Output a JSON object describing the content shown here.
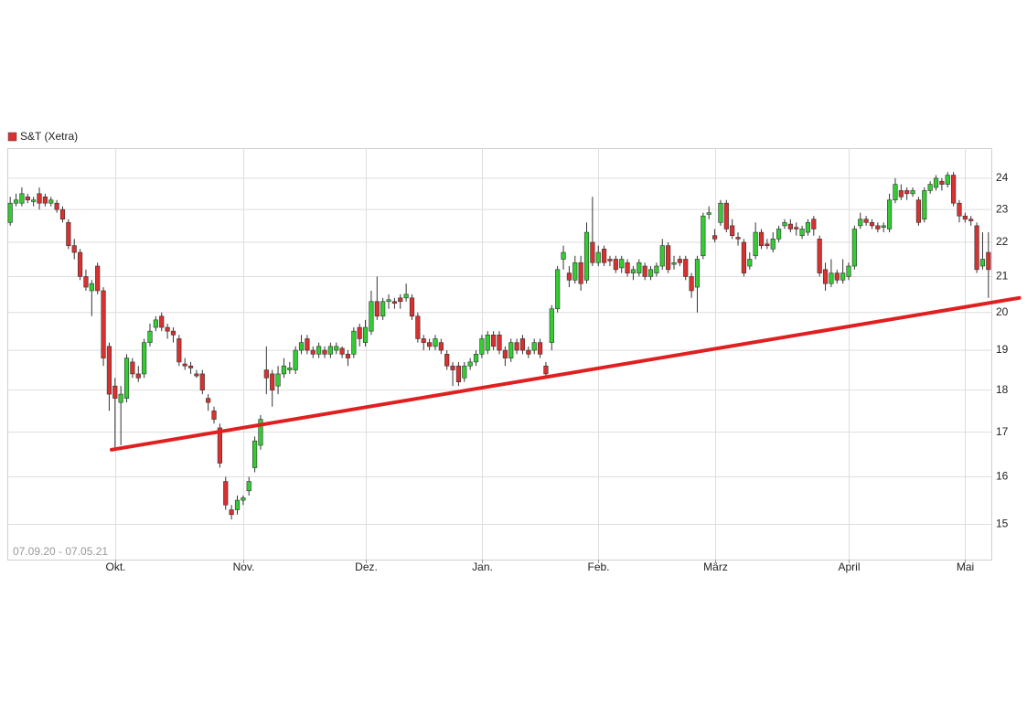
{
  "chart_data": {
    "type": "candlestick",
    "range_label": "07.09.20 - 07.05.21",
    "log_scale": true,
    "grid": true,
    "xlim": [
      -0.5,
      168.5
    ],
    "ylim": [
      14.3,
      25
    ],
    "yticks": [
      15,
      16,
      17,
      18,
      19,
      20,
      21,
      22,
      23,
      24
    ],
    "xticks": [
      {
        "value": 18,
        "label": "Okt."
      },
      {
        "value": 40,
        "label": "Nov."
      },
      {
        "value": 61,
        "label": "Dez."
      },
      {
        "value": 81,
        "label": "Jan."
      },
      {
        "value": 101,
        "label": "Feb."
      },
      {
        "value": 121,
        "label": "März"
      },
      {
        "value": 144,
        "label": "April"
      },
      {
        "value": 164,
        "label": "Mai"
      }
    ],
    "series": [
      {
        "name": "S&T (Xetra)",
        "color": "#d93030",
        "up_color": "#33cc33",
        "down_color": "#d93030",
        "open": [
          22.6,
          23.2,
          23.2,
          23.4,
          23.25,
          23.5,
          23.4,
          23.2,
          23.2,
          23.0,
          22.6,
          21.9,
          21.7,
          21.0,
          20.6,
          21.3,
          20.6,
          19.1,
          18.1,
          17.7,
          17.8,
          18.7,
          18.4,
          18.4,
          19.2,
          19.6,
          19.9,
          19.6,
          19.5,
          19.3,
          18.65,
          18.6,
          18.4,
          18.4,
          17.8,
          17.5,
          17.1,
          15.9,
          15.3,
          15.3,
          15.5,
          15.7,
          16.2,
          16.7,
          18.5,
          18.4,
          18.1,
          18.4,
          18.5,
          18.5,
          19.0,
          19.3,
          19.0,
          18.9,
          19.0,
          18.9,
          19.0,
          19.05,
          18.9,
          18.9,
          19.6,
          19.2,
          19.5,
          20.3,
          19.9,
          20.3,
          20.3,
          20.4,
          20.4,
          20.4,
          19.9,
          19.3,
          19.2,
          19.1,
          19.2,
          18.9,
          18.6,
          18.6,
          18.3,
          18.6,
          18.7,
          18.9,
          19.0,
          19.4,
          19.4,
          19.0,
          18.8,
          19.2,
          19.3,
          19.0,
          19.0,
          19.2,
          18.6,
          19.2,
          20.1,
          21.5,
          21.1,
          20.9,
          21.4,
          20.9,
          22.0,
          21.4,
          21.8,
          21.5,
          21.5,
          21.25,
          21.4,
          21.1,
          21.1,
          21.3,
          21.0,
          21.1,
          21.3,
          21.9,
          21.35,
          21.5,
          21.5,
          21.0,
          20.7,
          21.6,
          22.85,
          22.2,
          22.6,
          23.2,
          22.5,
          22.15,
          22.0,
          21.3,
          21.6,
          22.3,
          21.95,
          21.8,
          22.1,
          22.5,
          22.55,
          22.45,
          22.2,
          22.3,
          22.7,
          22.1,
          21.2,
          20.8,
          21.1,
          20.9,
          21.0,
          21.3,
          22.5,
          22.7,
          22.6,
          22.5,
          22.45,
          22.4,
          23.3,
          23.6,
          23.6,
          23.5,
          23.3,
          22.7,
          23.6,
          23.7,
          23.9,
          23.8,
          24.1,
          23.2,
          22.8,
          22.7,
          22.5,
          21.3,
          21.7
        ],
        "high": [
          23.4,
          23.5,
          23.7,
          23.5,
          23.4,
          23.7,
          23.5,
          23.4,
          23.3,
          23.1,
          22.7,
          22.1,
          21.8,
          21.2,
          20.9,
          21.4,
          20.7,
          19.2,
          18.3,
          18.1,
          18.9,
          18.8,
          18.6,
          19.3,
          19.7,
          19.9,
          20.0,
          19.7,
          19.6,
          19.4,
          18.8,
          18.7,
          18.5,
          18.5,
          17.9,
          17.6,
          17.2,
          16.0,
          15.4,
          15.6,
          15.6,
          16.0,
          16.9,
          17.4,
          19.1,
          18.5,
          18.6,
          18.8,
          18.7,
          19.1,
          19.4,
          19.4,
          19.1,
          19.2,
          19.1,
          19.2,
          19.2,
          19.1,
          19.0,
          19.6,
          19.7,
          19.8,
          20.6,
          21.0,
          20.4,
          20.5,
          20.4,
          20.5,
          20.8,
          20.5,
          20.0,
          19.4,
          19.3,
          19.4,
          19.3,
          19.0,
          18.7,
          18.7,
          18.7,
          18.8,
          19.0,
          19.4,
          19.5,
          19.5,
          19.5,
          19.1,
          19.3,
          19.3,
          19.4,
          19.1,
          19.3,
          19.3,
          18.7,
          20.2,
          21.3,
          21.9,
          21.3,
          21.6,
          21.6,
          22.6,
          23.4,
          21.9,
          21.9,
          21.6,
          21.6,
          21.6,
          21.5,
          21.3,
          21.5,
          21.4,
          21.3,
          21.4,
          22.1,
          22.0,
          21.6,
          21.6,
          21.6,
          21.1,
          21.6,
          22.9,
          23.1,
          22.4,
          23.3,
          23.3,
          22.7,
          22.3,
          22.1,
          21.7,
          22.6,
          22.4,
          22.1,
          22.3,
          22.5,
          22.7,
          22.7,
          22.6,
          22.5,
          22.7,
          22.8,
          22.2,
          21.4,
          21.5,
          21.2,
          21.5,
          21.4,
          22.5,
          22.9,
          22.8,
          22.7,
          22.6,
          22.6,
          23.5,
          24.0,
          23.8,
          23.7,
          23.7,
          23.4,
          23.7,
          23.9,
          24.1,
          24.0,
          24.2,
          24.2,
          23.3,
          22.9,
          22.8,
          22.6,
          22.3,
          22.3
        ],
        "low": [
          22.5,
          23.1,
          23.1,
          23.2,
          23.1,
          23.0,
          23.1,
          23.1,
          22.9,
          22.6,
          21.8,
          21.5,
          20.9,
          20.6,
          19.9,
          20.5,
          18.6,
          17.5,
          16.6,
          16.7,
          17.7,
          18.3,
          18.2,
          18.3,
          19.1,
          19.5,
          19.5,
          19.3,
          19.2,
          18.6,
          18.5,
          18.4,
          18.3,
          17.9,
          17.5,
          17.2,
          16.2,
          15.3,
          15.1,
          15.2,
          15.4,
          15.6,
          16.1,
          16.6,
          17.9,
          17.6,
          17.9,
          18.3,
          18.4,
          18.4,
          18.9,
          18.9,
          18.8,
          18.8,
          18.8,
          18.8,
          18.9,
          18.8,
          18.6,
          18.8,
          19.1,
          19.1,
          19.4,
          19.8,
          19.8,
          20.1,
          20.1,
          20.1,
          20.3,
          19.8,
          19.2,
          19.0,
          19.0,
          19.0,
          18.9,
          18.5,
          18.1,
          18.1,
          18.2,
          18.5,
          18.6,
          18.8,
          18.9,
          19.0,
          18.9,
          18.6,
          18.7,
          18.9,
          18.9,
          18.8,
          18.9,
          18.8,
          18.3,
          19.0,
          20.0,
          21.2,
          20.7,
          20.8,
          20.6,
          20.8,
          21.3,
          21.3,
          21.3,
          21.3,
          21.1,
          21.1,
          21.0,
          20.9,
          21.0,
          20.9,
          20.9,
          21.0,
          21.2,
          21.1,
          21.2,
          21.3,
          20.9,
          20.4,
          20.0,
          21.5,
          22.7,
          22.0,
          22.5,
          22.3,
          22.1,
          21.9,
          21.0,
          21.2,
          21.5,
          21.8,
          21.8,
          21.7,
          22.0,
          22.4,
          22.3,
          22.2,
          22.1,
          22.2,
          22.2,
          21.0,
          20.6,
          20.7,
          20.8,
          20.8,
          20.9,
          21.2,
          22.4,
          22.5,
          22.4,
          22.3,
          22.3,
          22.3,
          23.2,
          23.3,
          23.3,
          23.4,
          22.5,
          22.6,
          23.5,
          23.6,
          23.6,
          23.7,
          23.1,
          22.6,
          22.6,
          22.5,
          21.1,
          21.2,
          20.4
        ],
        "close": [
          23.2,
          23.3,
          23.5,
          23.3,
          23.3,
          23.2,
          23.2,
          23.3,
          23.0,
          22.7,
          21.9,
          21.7,
          21.0,
          20.7,
          20.8,
          20.6,
          18.8,
          17.9,
          17.8,
          17.9,
          18.8,
          18.4,
          18.3,
          19.2,
          19.5,
          19.8,
          19.6,
          19.5,
          19.4,
          18.7,
          18.6,
          18.55,
          18.35,
          18.0,
          17.7,
          17.3,
          16.3,
          15.4,
          15.2,
          15.5,
          15.55,
          15.9,
          16.8,
          17.3,
          18.3,
          18.0,
          18.4,
          18.6,
          18.55,
          19.0,
          19.2,
          19.0,
          18.9,
          19.1,
          18.9,
          19.1,
          19.1,
          18.9,
          18.8,
          19.5,
          19.3,
          19.6,
          20.3,
          19.9,
          20.3,
          20.35,
          20.25,
          20.3,
          20.5,
          19.9,
          19.3,
          19.2,
          19.1,
          19.3,
          19.0,
          18.6,
          18.5,
          18.2,
          18.6,
          18.7,
          18.9,
          19.3,
          19.4,
          19.1,
          19.0,
          18.8,
          19.2,
          19.0,
          19.0,
          18.9,
          19.2,
          18.9,
          18.4,
          20.1,
          21.2,
          21.7,
          20.9,
          21.4,
          20.8,
          22.3,
          21.4,
          21.7,
          21.4,
          21.45,
          21.2,
          21.5,
          21.1,
          21.2,
          21.4,
          21.0,
          21.2,
          21.3,
          21.9,
          21.2,
          21.4,
          21.4,
          21.0,
          20.6,
          21.5,
          22.8,
          22.9,
          22.1,
          23.2,
          22.4,
          22.2,
          22.1,
          21.1,
          21.5,
          22.3,
          21.9,
          21.9,
          22.1,
          22.4,
          22.6,
          22.4,
          22.4,
          22.4,
          22.6,
          22.4,
          21.1,
          20.8,
          21.1,
          20.9,
          21.1,
          21.3,
          22.4,
          22.7,
          22.6,
          22.5,
          22.4,
          22.5,
          23.3,
          23.8,
          23.4,
          23.5,
          23.6,
          22.6,
          23.6,
          23.8,
          24.0,
          23.8,
          24.1,
          23.2,
          22.8,
          22.7,
          22.65,
          21.2,
          21.5,
          21.2
        ]
      }
    ],
    "trendline": {
      "color": "#e02020",
      "points": [
        [
          17.4,
          16.6
        ],
        [
          173.3,
          20.4
        ]
      ]
    }
  }
}
